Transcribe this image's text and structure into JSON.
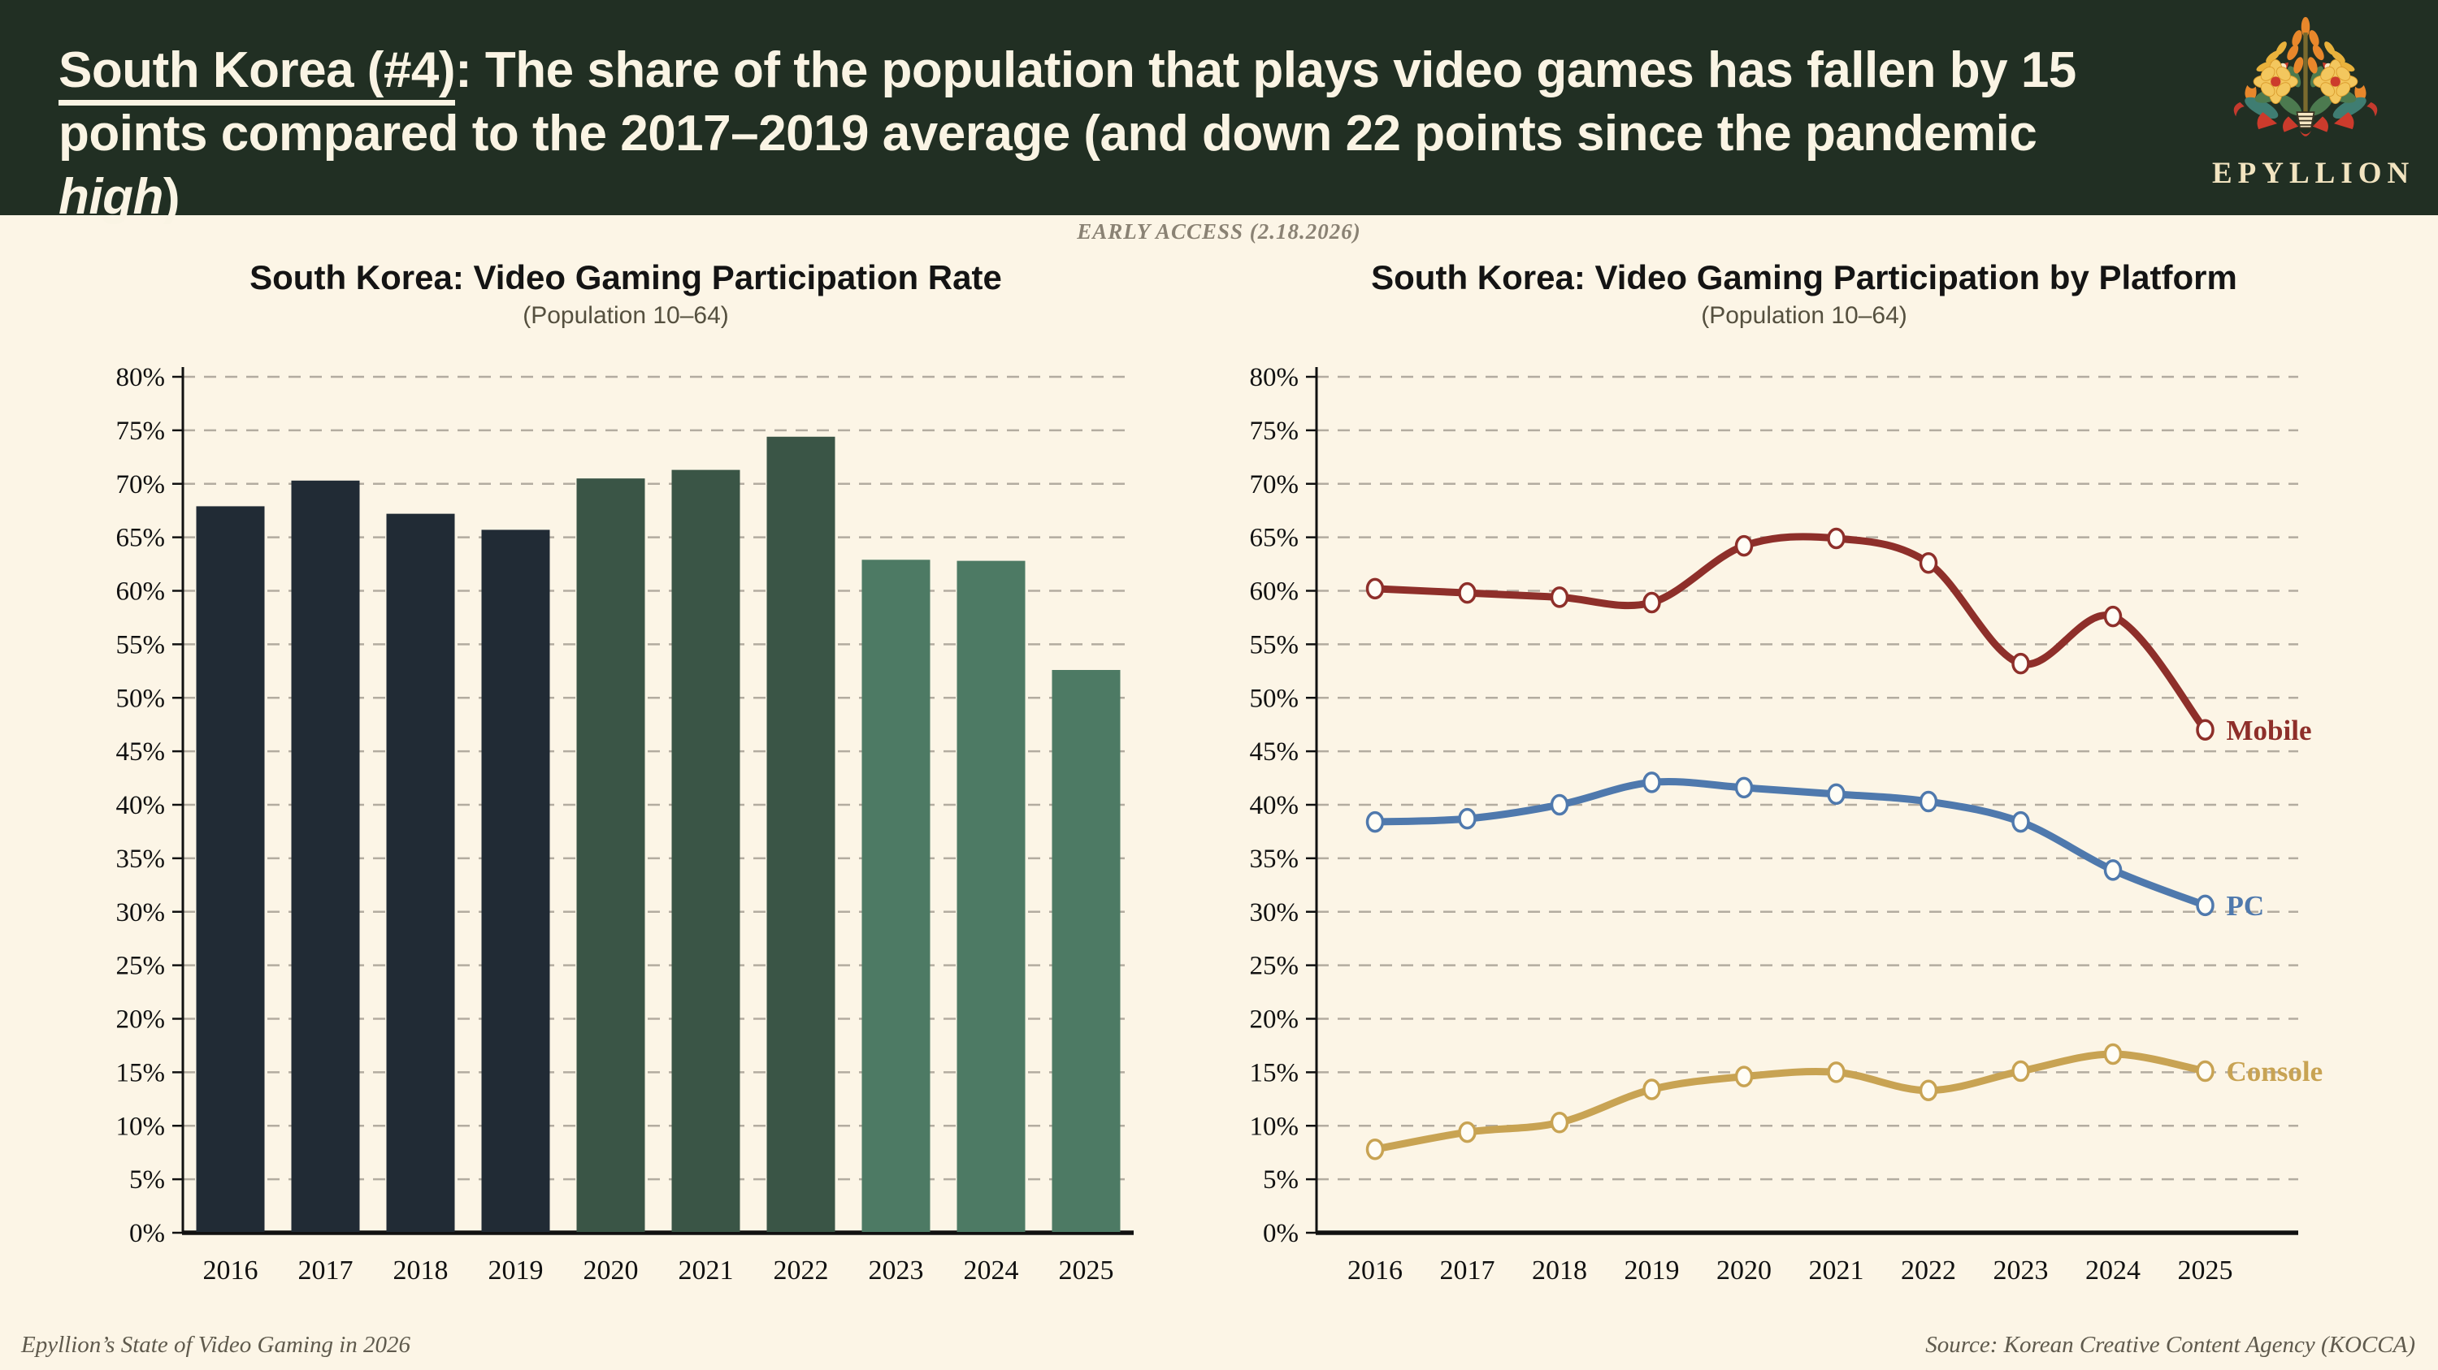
{
  "header": {
    "title_lead": "South Korea (#4)",
    "title_after_lead": ": The share of the population that plays video games has fallen by 15",
    "title_line2_pre": "points compared to the 2017–2019 average (and down 22 points since the pandemic ",
    "title_italic_word": "high",
    "title_line2_post": ")",
    "logo_text": "EPYLLION",
    "logo_icon": "floral-bouquet-icon",
    "bg_color": "#212f23",
    "text_color": "#faf4e4"
  },
  "banner": {
    "early_access": "EARLY ACCESS (2.18.2026)"
  },
  "footer": {
    "left": "Epyllion’s State of Video Gaming in 2026",
    "right": "Source: Korean Creative Content Agency (KOCCA)"
  },
  "palette": {
    "page_bg": "#fcf5e6",
    "grid_line": "#b3aca0",
    "axis_line": "#111111",
    "bar_navy": "#212b35",
    "bar_dark_green": "#3a5546",
    "bar_sage": "#4d7a64",
    "mobile_red": "#8e2f2a",
    "pc_blue": "#4f79ad",
    "console_gold": "#c8a353"
  },
  "chart_data": [
    {
      "type": "bar",
      "title": "South Korea: Video Gaming Participation Rate",
      "subtitle": "(Population 10–64)",
      "categories": [
        "2016",
        "2017",
        "2018",
        "2019",
        "2020",
        "2021",
        "2022",
        "2023",
        "2024",
        "2025"
      ],
      "values": [
        67.9,
        70.3,
        67.2,
        65.7,
        70.5,
        71.3,
        74.4,
        62.9,
        62.8,
        52.6
      ],
      "bar_colors": [
        "#212b35",
        "#212b35",
        "#212b35",
        "#212b35",
        "#3a5546",
        "#3a5546",
        "#3a5546",
        "#4d7a64",
        "#4d7a64",
        "#4d7a64"
      ],
      "xlabel": "",
      "ylabel": "",
      "ylim": [
        0,
        80
      ],
      "ytick_step": 5,
      "ytick_format": "percent",
      "grid": "dashed horizontal"
    },
    {
      "type": "line",
      "title": "South Korea: Video Gaming Participation by Platform",
      "subtitle": "(Population 10–64)",
      "x": [
        "2016",
        "2017",
        "2018",
        "2019",
        "2020",
        "2021",
        "2022",
        "2023",
        "2024",
        "2025"
      ],
      "series": [
        {
          "name": "Mobile",
          "color": "#8e2f2a",
          "values": [
            60.2,
            59.8,
            59.4,
            58.9,
            64.2,
            64.9,
            62.6,
            53.2,
            57.6,
            47.0
          ]
        },
        {
          "name": "PC",
          "color": "#4f79ad",
          "values": [
            38.4,
            38.7,
            40.0,
            42.1,
            41.6,
            41.0,
            40.3,
            38.4,
            33.9,
            30.6
          ]
        },
        {
          "name": "Console",
          "color": "#c8a353",
          "values": [
            7.8,
            9.4,
            10.3,
            13.4,
            14.6,
            15.0,
            13.3,
            15.1,
            16.7,
            15.1
          ]
        }
      ],
      "xlabel": "",
      "ylabel": "",
      "ylim": [
        0,
        80
      ],
      "ytick_step": 5,
      "ytick_format": "percent",
      "grid": "dashed horizontal",
      "legend_position": "line-end labels",
      "markers": "open circles"
    }
  ]
}
